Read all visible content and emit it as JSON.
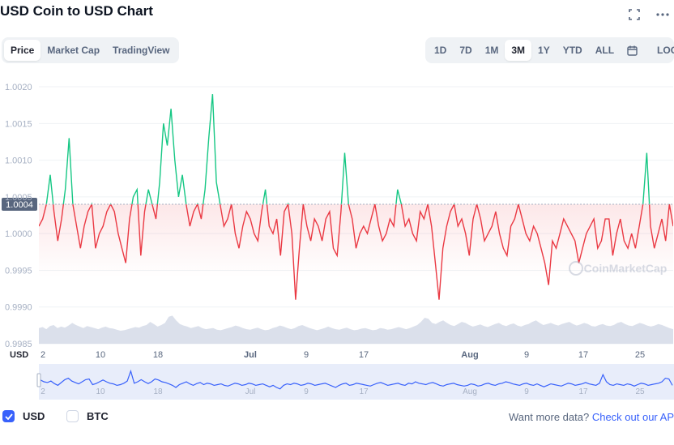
{
  "title": "USD Coin to USD Chart",
  "icons": {
    "fullscreen": "fullscreen-icon",
    "more": "more-icon",
    "calendar": "calendar-icon"
  },
  "tabs": [
    "Price",
    "Market Cap",
    "TradingView"
  ],
  "active_tab": "Price",
  "ranges": [
    "1D",
    "7D",
    "1M",
    "3M",
    "1Y",
    "YTD",
    "ALL"
  ],
  "active_range": "3M",
  "log_label": "LOG",
  "watermark": "CoinMarketCap",
  "legend": {
    "usd": "USD",
    "btc": "BTC",
    "usd_checked": true,
    "btc_checked": false
  },
  "cta": {
    "prefix": "Want more data?",
    "link": "Check out our AP"
  },
  "colors": {
    "up": "#16c784",
    "down": "#ea3943",
    "brand": "#3861fb",
    "volume": "#cfd6e4"
  },
  "chart_data": {
    "type": "line",
    "baseline": 1.0004,
    "baseline_label": "1.0004",
    "ylim": [
      0.9985,
      1.0021
    ],
    "yticks": [
      "1.0020",
      "1.0015",
      "1.0010",
      "1.0005",
      "1.0000",
      "0.9995",
      "0.9990",
      "0.9985"
    ],
    "yaxis_unit": "USD",
    "xticks": [
      {
        "label": "2",
        "month": false
      },
      {
        "label": "10",
        "month": false
      },
      {
        "label": "18",
        "month": false
      },
      {
        "label": "Jul",
        "month": true
      },
      {
        "label": "9",
        "month": false
      },
      {
        "label": "17",
        "month": false
      },
      {
        "label": "Aug",
        "month": true
      },
      {
        "label": "9",
        "month": false
      },
      {
        "label": "17",
        "month": false
      },
      {
        "label": "25",
        "month": false
      }
    ],
    "series": [
      {
        "values": [
          1.0001,
          1.0002,
          1.0004,
          1.0008,
          1.0003,
          0.9999,
          1.0002,
          1.0006,
          1.0013,
          1.0004,
          1.0001,
          0.9998,
          1.0001,
          1.0003,
          1.0004,
          0.9998,
          1.0,
          1.0001,
          1.0003,
          1.0004,
          1.0003,
          1.0,
          0.9998,
          0.9996,
          1.0002,
          1.0005,
          1.0006,
          0.9997,
          1.0003,
          1.0006,
          1.0004,
          1.0002,
          1.0007,
          1.0015,
          1.0012,
          1.0017,
          1.001,
          1.0005,
          1.0008,
          1.0004,
          1.0001,
          1.0003,
          1.0004,
          1.0002,
          1.0006,
          1.0013,
          1.0019,
          1.0007,
          1.0004,
          1.0001,
          1.0002,
          1.0004,
          1.0,
          0.9998,
          1.0001,
          1.0003,
          1.0002,
          1.0,
          0.9999,
          1.0003,
          1.0006,
          1.0001,
          1.0,
          1.0002,
          0.9997,
          1.0003,
          1.0004,
          1.0,
          0.9991,
          0.9998,
          1.0004,
          1.0001,
          0.9999,
          1.0002,
          1.0001,
          0.9999,
          1.0002,
          1.0003,
          0.9998,
          0.9997,
          1.0003,
          1.0011,
          1.0004,
          1.0002,
          0.9998,
          1.0,
          1.0001,
          1.0,
          1.0002,
          1.0004,
          1.0001,
          0.9999,
          1.0,
          1.0002,
          1.0001,
          1.0006,
          1.0004,
          1.0001,
          1.0002,
          1.0,
          0.9999,
          1.0003,
          1.0002,
          1.0004,
          1.0001,
          0.9996,
          0.9991,
          0.9998,
          1.0001,
          1.0003,
          1.0004,
          1.0001,
          1.0002,
          1.0,
          0.9997,
          1.0002,
          1.0004,
          1.0002,
          0.9999,
          1.0,
          1.0001,
          1.0003,
          1.0,
          0.9998,
          0.9997,
          1.0001,
          1.0002,
          1.0004,
          1.0002,
          1.0,
          0.9999,
          1.0001,
          1.0,
          0.9998,
          0.9996,
          0.9993,
          0.9999,
          0.9998,
          1.0,
          1.0002,
          1.0001,
          1.0,
          0.9999,
          0.9996,
          0.9998,
          1.0,
          1.0001,
          1.0002,
          0.9998,
          0.9999,
          1.0002,
          1.0002,
          0.9997,
          1.0,
          1.0002,
          0.9999,
          0.9998,
          1.0,
          0.9998,
          1.0001,
          1.0004,
          1.0011,
          1.0001,
          0.9998,
          1.0,
          1.0002,
          0.9999,
          1.0004,
          1.0001
        ]
      }
    ],
    "volume": [
      0.3,
      0.32,
      0.28,
      0.34,
      0.36,
      0.3,
      0.33,
      0.31,
      0.35,
      0.4,
      0.36,
      0.33,
      0.3,
      0.34,
      0.32,
      0.3,
      0.28,
      0.31,
      0.33,
      0.3,
      0.29,
      0.27,
      0.25,
      0.26,
      0.28,
      0.3,
      0.32,
      0.31,
      0.34,
      0.36,
      0.42,
      0.38,
      0.33,
      0.36,
      0.4,
      0.52,
      0.54,
      0.45,
      0.38,
      0.35,
      0.33,
      0.3,
      0.32,
      0.34,
      0.3,
      0.28,
      0.29,
      0.3,
      0.27,
      0.26,
      0.28,
      0.3,
      0.32,
      0.35,
      0.33,
      0.3,
      0.28,
      0.27,
      0.29,
      0.31,
      0.28,
      0.26,
      0.27,
      0.3,
      0.32,
      0.35,
      0.33,
      0.3,
      0.28,
      0.3,
      0.34,
      0.36,
      0.33,
      0.3,
      0.28,
      0.26,
      0.28,
      0.3,
      0.33,
      0.3,
      0.28,
      0.27,
      0.29,
      0.31,
      0.28,
      0.26,
      0.27,
      0.29,
      0.3,
      0.28,
      0.26,
      0.27,
      0.3,
      0.29,
      0.27,
      0.28,
      0.3,
      0.32,
      0.3,
      0.28,
      0.3,
      0.33,
      0.36,
      0.42,
      0.5,
      0.48,
      0.4,
      0.38,
      0.42,
      0.45,
      0.4,
      0.36,
      0.34,
      0.38,
      0.42,
      0.4,
      0.36,
      0.33,
      0.35,
      0.37,
      0.34,
      0.32,
      0.35,
      0.38,
      0.4,
      0.36,
      0.34,
      0.37,
      0.39,
      0.35,
      0.33,
      0.36,
      0.38,
      0.42,
      0.45,
      0.4,
      0.36,
      0.38,
      0.4,
      0.37,
      0.35,
      0.38,
      0.4,
      0.42,
      0.38,
      0.35,
      0.37,
      0.4,
      0.38,
      0.34,
      0.33,
      0.36,
      0.38,
      0.35,
      0.34,
      0.36,
      0.4,
      0.42,
      0.38,
      0.35,
      0.34,
      0.37,
      0.4,
      0.38,
      0.35,
      0.33,
      0.35,
      0.38,
      0.36,
      0.33,
      0.3,
      0.28
    ],
    "navigator": [
      0.55,
      0.5,
      0.48,
      0.52,
      0.45,
      0.4,
      0.48,
      0.56,
      0.6,
      0.52,
      0.48,
      0.44,
      0.5,
      0.56,
      0.58,
      0.42,
      0.45,
      0.5,
      0.55,
      0.5,
      0.46,
      0.44,
      0.4,
      0.42,
      0.46,
      0.52,
      0.8,
      0.46,
      0.5,
      0.56,
      0.5,
      0.45,
      0.5,
      0.58,
      0.55,
      0.5,
      0.48,
      0.44,
      0.4,
      0.34,
      0.42,
      0.46,
      0.5,
      0.44,
      0.4,
      0.45,
      0.48,
      0.42,
      0.46,
      0.44,
      0.4,
      0.42,
      0.44,
      0.4,
      0.38,
      0.42,
      0.46,
      0.44,
      0.4,
      0.42,
      0.46,
      0.44,
      0.4,
      0.42,
      0.44,
      0.4,
      0.36,
      0.4,
      0.34,
      0.3,
      0.4,
      0.44,
      0.42,
      0.46,
      0.44,
      0.4,
      0.42,
      0.46,
      0.44,
      0.4,
      0.42,
      0.44,
      0.46,
      0.42,
      0.38,
      0.34,
      0.4,
      0.44,
      0.46,
      0.4,
      0.42,
      0.46,
      0.44,
      0.42,
      0.4,
      0.38,
      0.42,
      0.46,
      0.48,
      0.44,
      0.4,
      0.42,
      0.44,
      0.46,
      0.42,
      0.4,
      0.46,
      0.44,
      0.5,
      0.46,
      0.44,
      0.42,
      0.46,
      0.48,
      0.44,
      0.4,
      0.38,
      0.42,
      0.44,
      0.46,
      0.42,
      0.4,
      0.38,
      0.4,
      0.44,
      0.42,
      0.38,
      0.4,
      0.44,
      0.46,
      0.42,
      0.4,
      0.44,
      0.46,
      0.5,
      0.48,
      0.44,
      0.42,
      0.4,
      0.44,
      0.46,
      0.42,
      0.4,
      0.44,
      0.4,
      0.36,
      0.4,
      0.44,
      0.42,
      0.4,
      0.38,
      0.42,
      0.46,
      0.44,
      0.4,
      0.42,
      0.44,
      0.48,
      0.44,
      0.42,
      0.4,
      0.46,
      0.7,
      0.5,
      0.42,
      0.4,
      0.44,
      0.42,
      0.4,
      0.44,
      0.42,
      0.38,
      0.42,
      0.46,
      0.44,
      0.4,
      0.42,
      0.44,
      0.46,
      0.5,
      0.6,
      0.58,
      0.4
    ]
  }
}
